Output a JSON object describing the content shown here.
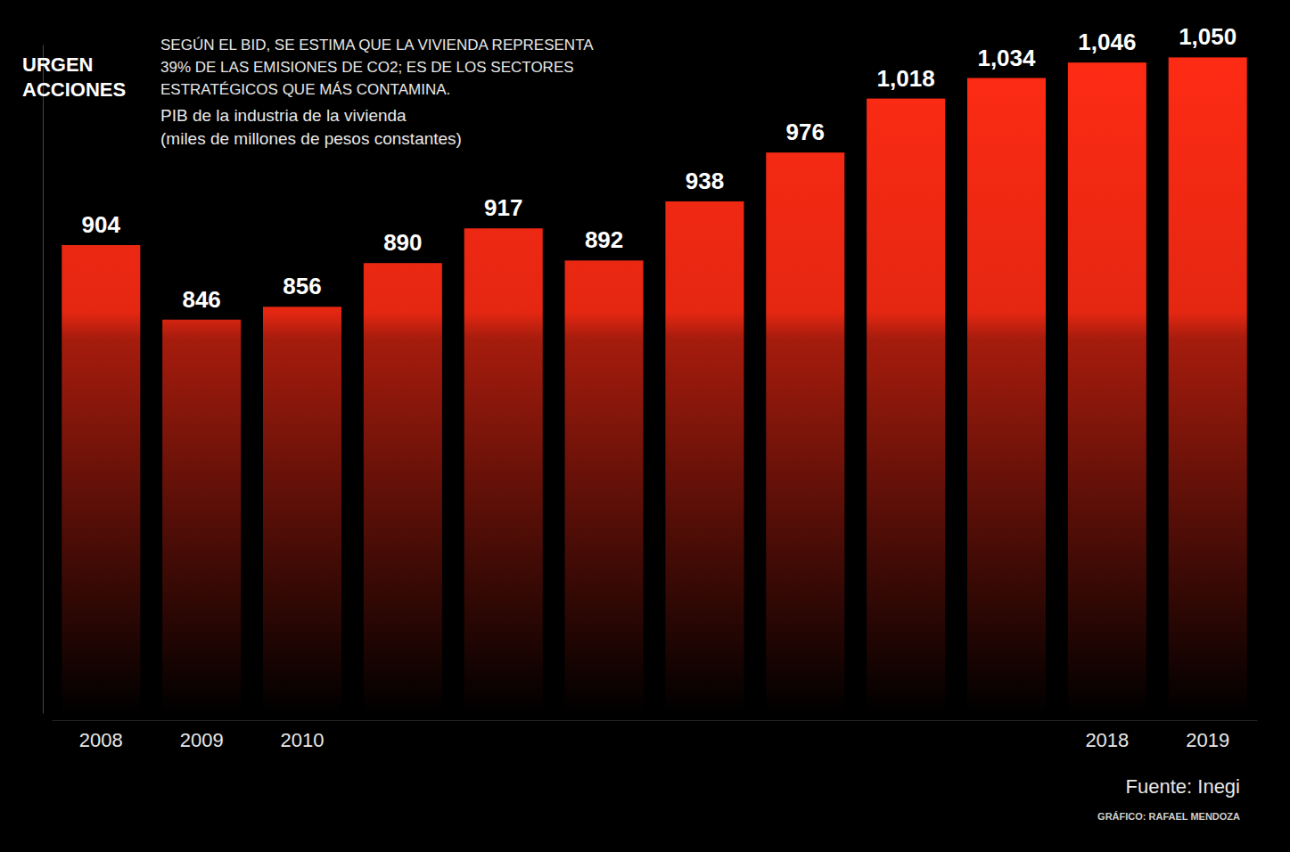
{
  "chart_data": {
    "type": "bar",
    "title": "URGEN ACCIONES",
    "subtitle": "PIB de la industria de la vivienda",
    "y_label": "(miles de millones de pesos constantes)",
    "annotations": [
      "SEGÚN EL BID, SE ESTIMA QUE LA VIVIENDA REPRESENTA 39% DE LAS EMISIONES DE CO2; ES DE LOS SECTORES ESTRATÉGICOS QUE MÁS CONTAMINA.",
      "Fuente: Inegi",
      "GRÁFICO: RAFAEL MENDOZA"
    ],
    "categories": [
      "2008",
      "2009",
      "2010",
      null,
      null,
      null,
      null,
      null,
      null,
      null,
      "2018",
      "2019"
    ],
    "values": [
      904,
      846,
      856,
      890,
      917,
      892,
      938,
      976,
      1018,
      1034,
      1046,
      1050
    ],
    "value_labels": [
      "904",
      "846",
      "856",
      "890",
      "917",
      "892",
      "938",
      "976",
      "1,018",
      "1,034",
      "1,046",
      "1,050"
    ],
    "data_labels": true,
    "color": "#ff2b14",
    "ylim": [
      540,
      1060
    ],
    "tick_labels": "x",
    "grid": false
  }
}
